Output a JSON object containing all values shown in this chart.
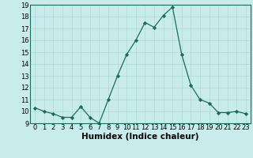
{
  "x": [
    0,
    1,
    2,
    3,
    4,
    5,
    6,
    7,
    8,
    9,
    10,
    11,
    12,
    13,
    14,
    15,
    16,
    17,
    18,
    19,
    20,
    21,
    22,
    23
  ],
  "y": [
    10.3,
    10.0,
    9.8,
    9.5,
    9.5,
    10.4,
    9.5,
    9.0,
    11.0,
    13.0,
    14.8,
    16.0,
    17.5,
    17.1,
    18.1,
    18.8,
    14.8,
    12.2,
    11.0,
    10.7,
    9.9,
    9.9,
    10.0,
    9.8
  ],
  "line_color": "#1a6b5e",
  "marker": "D",
  "bg_color": "#c8ecec",
  "grid_color": "#b0d8d8",
  "xlabel": "Humidex (Indice chaleur)",
  "ylim": [
    9,
    19
  ],
  "yticks": [
    9,
    10,
    11,
    12,
    13,
    14,
    15,
    16,
    17,
    18,
    19
  ],
  "xticks": [
    0,
    1,
    2,
    3,
    4,
    5,
    6,
    7,
    8,
    9,
    10,
    11,
    12,
    13,
    14,
    15,
    16,
    17,
    18,
    19,
    20,
    21,
    22,
    23
  ],
  "tick_fontsize": 6,
  "xlabel_fontsize": 7.5
}
